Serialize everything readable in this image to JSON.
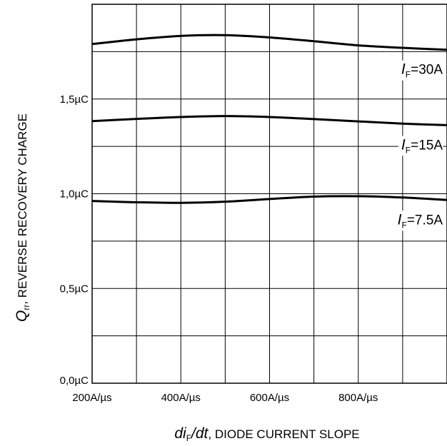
{
  "chart_data": {
    "type": "line",
    "xlabel": {
      "var_main": "di",
      "var_sub": "F",
      "var_tail": "/dt",
      "text": ", DIODE CURRENT SLOPE"
    },
    "ylabel": {
      "var_main": "Q",
      "var_sub": "rr",
      "text": ", REVERSE RECOVERY CHARGE"
    },
    "x_tick_values": [
      200,
      400,
      600,
      800
    ],
    "x_tick_labels": [
      "200A/µs",
      "400A/µs",
      "600A/µs",
      "800A/µs"
    ],
    "y_tick_values": [
      0,
      0.5,
      1.0,
      1.5
    ],
    "y_tick_labels": [
      "0,0µC",
      "0,5µC",
      "1,0µC",
      "1,5µC"
    ],
    "xlim": [
      200,
      1000
    ],
    "ylim": [
      0,
      2.0
    ],
    "grid": true,
    "series": [
      {
        "name_main": "I",
        "name_sub": "F",
        "name_tail": "=30A",
        "x": [
          200,
          300,
          400,
          500,
          600,
          700,
          800,
          900,
          1000
        ],
        "y": [
          1.79,
          1.815,
          1.833,
          1.837,
          1.825,
          1.805,
          1.783,
          1.77,
          1.76
        ]
      },
      {
        "name_main": "I",
        "name_sub": "F",
        "name_tail": "=15A",
        "x": [
          200,
          300,
          400,
          500,
          600,
          700,
          800,
          900,
          1000
        ],
        "y": [
          1.383,
          1.395,
          1.405,
          1.41,
          1.405,
          1.394,
          1.382,
          1.37,
          1.362
        ]
      },
      {
        "name_main": "I",
        "name_sub": "F",
        "name_tail": "=7.5A",
        "x": [
          200,
          300,
          400,
          500,
          600,
          700,
          800,
          900,
          1000
        ],
        "y": [
          0.962,
          0.955,
          0.952,
          0.958,
          0.972,
          0.985,
          0.987,
          0.98,
          0.967
        ]
      }
    ]
  }
}
